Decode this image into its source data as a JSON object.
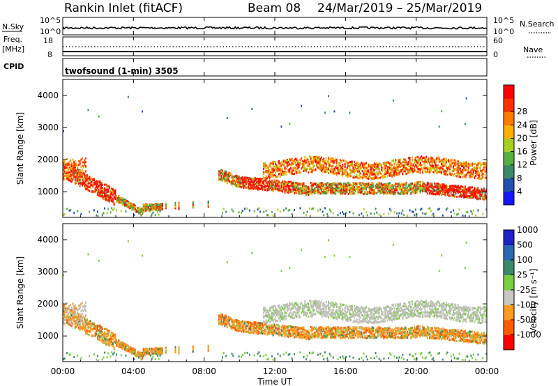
{
  "header": {
    "station": "Rankin Inlet (fitACF)",
    "beam": "Beam 08",
    "date_range": "24/Mar/2019 – 25/Mar/2019"
  },
  "nsky_panel": {
    "left_label": "N.Sky",
    "right_label": "N.Search",
    "left_ticks": [
      "10^5",
      "10^0"
    ],
    "right_ticks": [
      "10^5",
      "10^0"
    ]
  },
  "freq_panel": {
    "left_label_1": "Freq.",
    "left_label_2": "[MHz]",
    "right_label": "Nave",
    "left_ticks": [
      "18",
      "8"
    ],
    "right_ticks": [
      "60",
      "0"
    ]
  },
  "cpid_panel": {
    "label": "CPID",
    "program": "twofsound (1-min) 3505"
  },
  "x_axis": {
    "label": "Time UT",
    "ticks": [
      "00:00",
      "04:00",
      "08:00",
      "12:00",
      "16:00",
      "20:00",
      "00:00"
    ]
  },
  "colors": {
    "power_scale": [
      "#1414ff",
      "#2050b0",
      "#3a8a6a",
      "#56b040",
      "#a8d020",
      "#ffb000",
      "#ff7a00",
      "#ff3000",
      "#ff0000"
    ],
    "velocity_scale": [
      "#ff0000",
      "#ff5a00",
      "#ff9a20",
      "#c8c8c0",
      "#78d040",
      "#3a8a6a",
      "#2a6ab0",
      "#2020c8"
    ],
    "ground_scatter": "#c0c0b8"
  },
  "chart_data": [
    {
      "type": "heatmap",
      "title": "",
      "ylabel": "Slant Range [km]",
      "xlabel": "",
      "ylim": [
        200,
        4500
      ],
      "yticks": [
        1000,
        2000,
        3000,
        4000
      ],
      "xlim_hours": [
        0,
        24
      ],
      "colorbar": {
        "label": "Power [dB]",
        "ticks": [
          "4",
          "8",
          "12",
          "16",
          "20",
          "24",
          "28"
        ],
        "range": [
          0,
          32
        ]
      }
    },
    {
      "type": "heatmap",
      "title": "",
      "ylabel": "Slant Range [km]",
      "xlabel": "Time UT",
      "ylim": [
        200,
        4500
      ],
      "yticks": [
        1000,
        2000,
        3000,
        4000
      ],
      "xlim_hours": [
        0,
        24
      ],
      "colorbar": {
        "label": "Velocity [m s⁻¹]",
        "ticks": [
          "-1000",
          "-500",
          "-100",
          "-25",
          "25",
          "100",
          "500",
          "1000"
        ]
      }
    }
  ]
}
